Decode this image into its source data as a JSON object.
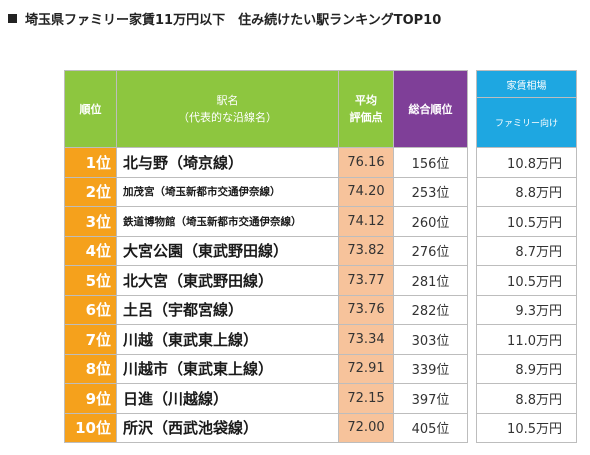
{
  "title": "埼玉県ファミリー家賃11万円以下　住み続けたい駅ランキングTOP10",
  "headers": {
    "rank": "順位",
    "station_line1": "駅名",
    "station_line2": "（代表的な沿線名）",
    "score_line1": "平均",
    "score_line2": "評価点",
    "total": "総合順位",
    "rent_group": "家賃相場",
    "rent_sub": "ファミリー向け"
  },
  "rows": [
    {
      "rank": "1位",
      "station": "北与野（埼京線）",
      "score": "76.16",
      "total": "156位",
      "rent": "10.8万円"
    },
    {
      "rank": "2位",
      "station": "加茂宮（埼玉新都市交通伊奈線）",
      "score": "74.20",
      "total": "253位",
      "rent": "8.8万円"
    },
    {
      "rank": "3位",
      "station": "鉄道博物館（埼玉新都市交通伊奈線）",
      "score": "74.12",
      "total": "260位",
      "rent": "10.5万円"
    },
    {
      "rank": "4位",
      "station": "大宮公園（東武野田線）",
      "score": "73.82",
      "total": "276位",
      "rent": "8.7万円"
    },
    {
      "rank": "5位",
      "station": "北大宮（東武野田線）",
      "score": "73.77",
      "total": "281位",
      "rent": "10.5万円"
    },
    {
      "rank": "6位",
      "station": "土呂（宇都宮線）",
      "score": "73.76",
      "total": "282位",
      "rent": "9.3万円"
    },
    {
      "rank": "7位",
      "station": "川越（東武東上線）",
      "score": "73.34",
      "total": "303位",
      "rent": "11.0万円"
    },
    {
      "rank": "8位",
      "station": "川越市（東武東上線）",
      "score": "72.91",
      "total": "339位",
      "rent": "8.9万円"
    },
    {
      "rank": "9位",
      "station": "日進（川越線）",
      "score": "72.15",
      "total": "397位",
      "rent": "8.8万円"
    },
    {
      "rank": "10位",
      "station": "所沢（西武池袋線）",
      "score": "72.00",
      "total": "405位",
      "rent": "10.5万円"
    }
  ],
  "colors": {
    "header_green": "#8dc63f",
    "header_purple": "#7f3f98",
    "header_blue": "#1ea7e1",
    "rank_orange": "#f5a11c",
    "score_peach": "#f7c39b"
  }
}
